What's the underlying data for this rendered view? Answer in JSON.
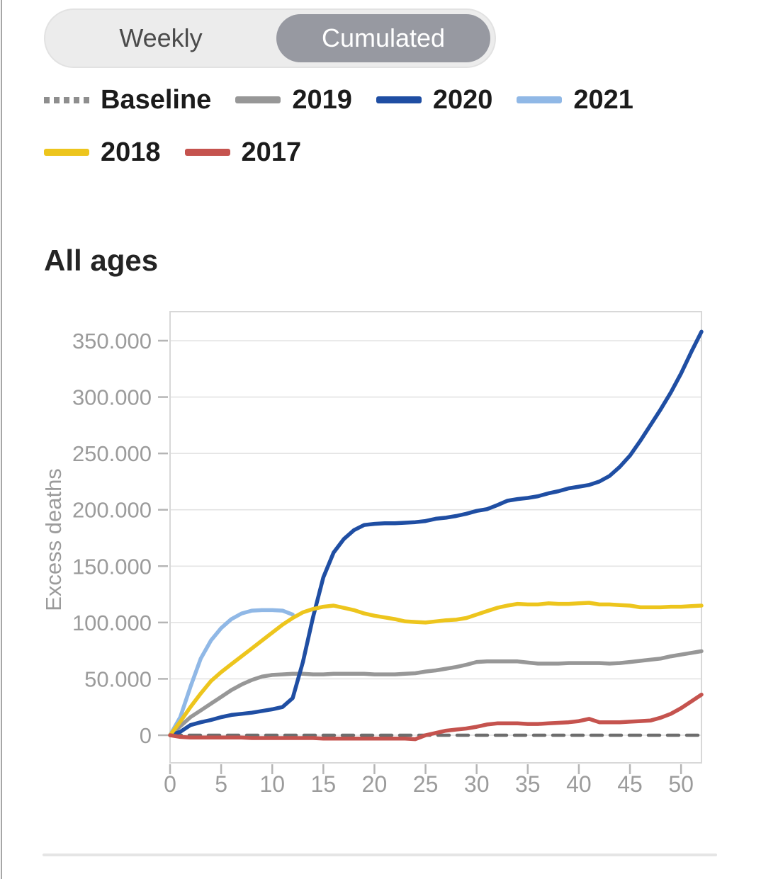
{
  "toggle": {
    "options": [
      {
        "label": "Weekly",
        "selected": false
      },
      {
        "label": "Cumulated",
        "selected": true
      }
    ],
    "selected_bg": "#9799a1",
    "selected_text_color": "#ffffff"
  },
  "legend": {
    "items": [
      {
        "label": "Baseline",
        "color": "#8e8e8e",
        "style": "dashed"
      },
      {
        "label": "2019",
        "color": "#979797",
        "style": "solid"
      },
      {
        "label": "2020",
        "color": "#1f4ea3",
        "style": "solid"
      },
      {
        "label": "2021",
        "color": "#90b8e6",
        "style": "solid"
      },
      {
        "label": "2018",
        "color": "#edc51d",
        "style": "solid"
      },
      {
        "label": "2017",
        "color": "#c5534e",
        "style": "solid"
      }
    ]
  },
  "section": {
    "title": "All ages"
  },
  "chart_data": {
    "type": "line",
    "title": "All ages",
    "xlabel": "",
    "ylabel": "Excess deaths",
    "x_unit": "week",
    "xlim": [
      0,
      52
    ],
    "ylim": [
      -25000,
      375000
    ],
    "grid": true,
    "legend_position": "top",
    "x_ticks": [
      {
        "value": 0,
        "label": "0"
      },
      {
        "value": 5,
        "label": "5"
      },
      {
        "value": 10,
        "label": "10"
      },
      {
        "value": 15,
        "label": "15"
      },
      {
        "value": 20,
        "label": "20"
      },
      {
        "value": 25,
        "label": "25"
      },
      {
        "value": 30,
        "label": "30"
      },
      {
        "value": 35,
        "label": "35"
      },
      {
        "value": 40,
        "label": "40"
      },
      {
        "value": 45,
        "label": "45"
      },
      {
        "value": 50,
        "label": "50"
      }
    ],
    "y_ticks": [
      {
        "value": 0,
        "label": "0"
      },
      {
        "value": 50000,
        "label": "50.000"
      },
      {
        "value": 100000,
        "label": "100.000"
      },
      {
        "value": 150000,
        "label": "150.000"
      },
      {
        "value": 200000,
        "label": "200.000"
      },
      {
        "value": 250000,
        "label": "250.000"
      },
      {
        "value": 300000,
        "label": "300.000"
      },
      {
        "value": 350000,
        "label": "350.000"
      }
    ],
    "series": [
      {
        "name": "Baseline",
        "color": "#6d6d6d",
        "dashed": true,
        "x": [
          0,
          52
        ],
        "values": [
          0,
          0
        ]
      },
      {
        "name": "2019",
        "color": "#979797",
        "dashed": false,
        "values": [
          0,
          8000,
          16000,
          22000,
          28000,
          34000,
          40000,
          45000,
          49000,
          52000,
          53500,
          54000,
          54500,
          54500,
          54000,
          54000,
          54500,
          54500,
          54500,
          54500,
          54000,
          54000,
          54000,
          54500,
          55000,
          56500,
          57500,
          59000,
          60500,
          62500,
          65000,
          65500,
          65500,
          65500,
          65500,
          64500,
          63500,
          63500,
          63500,
          64000,
          64000,
          64000,
          64000,
          63500,
          64000,
          65000,
          66000,
          67000,
          68000,
          70000,
          71500,
          73000,
          74500
        ]
      },
      {
        "name": "2020",
        "color": "#1f4ea3",
        "dashed": false,
        "values": [
          0,
          3000,
          9000,
          11500,
          13500,
          16000,
          18000,
          19000,
          20000,
          21500,
          23000,
          25000,
          33000,
          65000,
          105000,
          140000,
          162000,
          174000,
          182000,
          186500,
          187500,
          188000,
          188000,
          188500,
          189000,
          190000,
          192000,
          193000,
          194500,
          196500,
          199000,
          200500,
          204000,
          208000,
          209500,
          210500,
          212000,
          214500,
          216500,
          219000,
          220500,
          222000,
          225000,
          230000,
          238000,
          248000,
          261000,
          275000,
          289000,
          304000,
          321000,
          340000,
          358000
        ]
      },
      {
        "name": "2021",
        "color": "#90b8e6",
        "dashed": false,
        "values": [
          0,
          16000,
          43000,
          68000,
          84000,
          95000,
          103000,
          108000,
          110500,
          111000,
          111000,
          110500,
          107000
        ]
      },
      {
        "name": "2018",
        "color": "#edc51d",
        "dashed": false,
        "values": [
          0,
          12000,
          25000,
          37000,
          48000,
          56000,
          63000,
          70000,
          77000,
          84000,
          91000,
          98000,
          104000,
          109000,
          112000,
          114000,
          115000,
          113000,
          111000,
          108000,
          106000,
          104500,
          103000,
          101000,
          100500,
          100000,
          101000,
          102000,
          102500,
          104000,
          107000,
          110000,
          113000,
          115000,
          116500,
          116000,
          116000,
          117000,
          116500,
          116500,
          117000,
          117500,
          116000,
          116000,
          115500,
          115000,
          113500,
          113500,
          113500,
          114000,
          114000,
          114500,
          115000
        ]
      },
      {
        "name": "2017",
        "color": "#c5534e",
        "dashed": false,
        "values": [
          0,
          -1500,
          -2000,
          -2000,
          -2000,
          -2000,
          -2000,
          -2000,
          -2500,
          -2500,
          -2500,
          -2500,
          -2500,
          -2500,
          -2500,
          -3000,
          -3000,
          -3000,
          -3000,
          -3000,
          -3000,
          -3000,
          -3000,
          -3000,
          -3500,
          0,
          2000,
          4000,
          5000,
          6000,
          7500,
          9500,
          10500,
          10500,
          10500,
          10000,
          10000,
          10500,
          11000,
          11500,
          12500,
          14500,
          11500,
          11500,
          11500,
          12000,
          12500,
          13000,
          15500,
          19000,
          24000,
          30000,
          36000
        ]
      }
    ]
  }
}
